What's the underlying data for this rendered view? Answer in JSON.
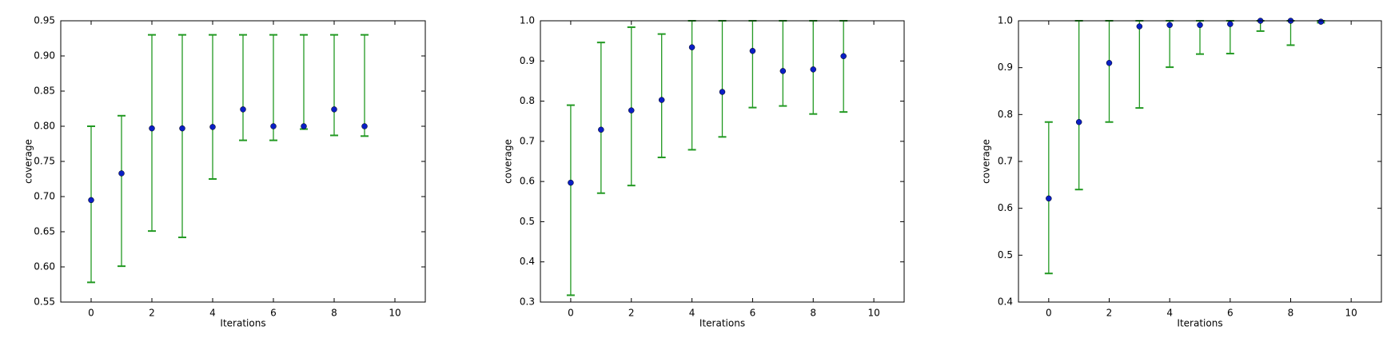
{
  "chart_data": [
    {
      "type": "errorbar",
      "xlabel": "Iterations",
      "ylabel": "coverage",
      "x": [
        0,
        1,
        2,
        3,
        4,
        5,
        6,
        7,
        8,
        9
      ],
      "values": [
        0.695,
        0.733,
        0.797,
        0.797,
        0.799,
        0.824,
        0.8,
        0.8,
        0.824,
        0.8
      ],
      "lower": [
        0.578,
        0.601,
        0.651,
        0.642,
        0.725,
        0.78,
        0.78,
        0.796,
        0.787,
        0.786
      ],
      "upper": [
        0.8,
        0.815,
        0.93,
        0.93,
        0.93,
        0.93,
        0.93,
        0.93,
        0.93,
        0.93
      ],
      "color": "#0a1fc4",
      "error_color": "#229922",
      "xlim": [
        -1,
        11
      ],
      "xticks": [
        0,
        2,
        4,
        6,
        8,
        10
      ],
      "ylim": [
        0.55,
        0.95
      ],
      "yticks": [
        0.55,
        {
          "value": 0.6,
          "label": "0.60"
        },
        0.65,
        {
          "value": 0.7,
          "label": "0.70"
        },
        0.75,
        {
          "value": 0.8,
          "label": "0.80"
        },
        0.85,
        {
          "value": 0.9,
          "label": "0.90"
        },
        0.95
      ]
    },
    {
      "type": "errorbar",
      "xlabel": "Iterations",
      "ylabel": "coverage",
      "x": [
        0,
        1,
        2,
        3,
        4,
        5,
        6,
        7,
        8,
        9
      ],
      "values": [
        0.597,
        0.729,
        0.777,
        0.803,
        0.934,
        0.823,
        0.925,
        0.875,
        0.879,
        0.912
      ],
      "lower": [
        0.317,
        0.571,
        0.59,
        0.66,
        0.679,
        0.711,
        0.784,
        0.788,
        0.768,
        0.773
      ],
      "upper": [
        0.79,
        0.946,
        0.984,
        0.967,
        1.0,
        1.0,
        1.0,
        1.0,
        1.0,
        1.0
      ],
      "color": "#0a1fc4",
      "error_color": "#229922",
      "xlim": [
        -1,
        11
      ],
      "xticks": [
        0,
        2,
        4,
        6,
        8,
        10
      ],
      "ylim": [
        0.3,
        1.0
      ],
      "yticks": [
        0.3,
        0.4,
        0.5,
        0.6,
        0.7,
        0.8,
        0.9,
        {
          "value": 1.0,
          "label": "1.0"
        }
      ]
    },
    {
      "type": "errorbar",
      "xlabel": "Iterations",
      "ylabel": "coverage",
      "x": [
        0,
        1,
        2,
        3,
        4,
        5,
        6,
        7,
        8,
        9
      ],
      "values": [
        0.621,
        0.784,
        0.91,
        0.988,
        0.991,
        0.991,
        0.993,
        1.0,
        1.0,
        0.998
      ],
      "lower": [
        0.461,
        0.64,
        0.784,
        0.814,
        0.901,
        0.929,
        0.93,
        0.978,
        0.948,
        0.996
      ],
      "upper": [
        0.784,
        1.0,
        1.0,
        1.0,
        1.0,
        1.0,
        1.0,
        1.0,
        1.0,
        1.0
      ],
      "color": "#0a1fc4",
      "error_color": "#229922",
      "xlim": [
        -1,
        11
      ],
      "xticks": [
        0,
        2,
        4,
        6,
        8,
        10
      ],
      "ylim": [
        0.4,
        1.0
      ],
      "yticks": [
        0.4,
        0.5,
        0.6,
        0.7,
        0.8,
        0.9,
        {
          "value": 1.0,
          "label": "1.0"
        }
      ]
    }
  ]
}
